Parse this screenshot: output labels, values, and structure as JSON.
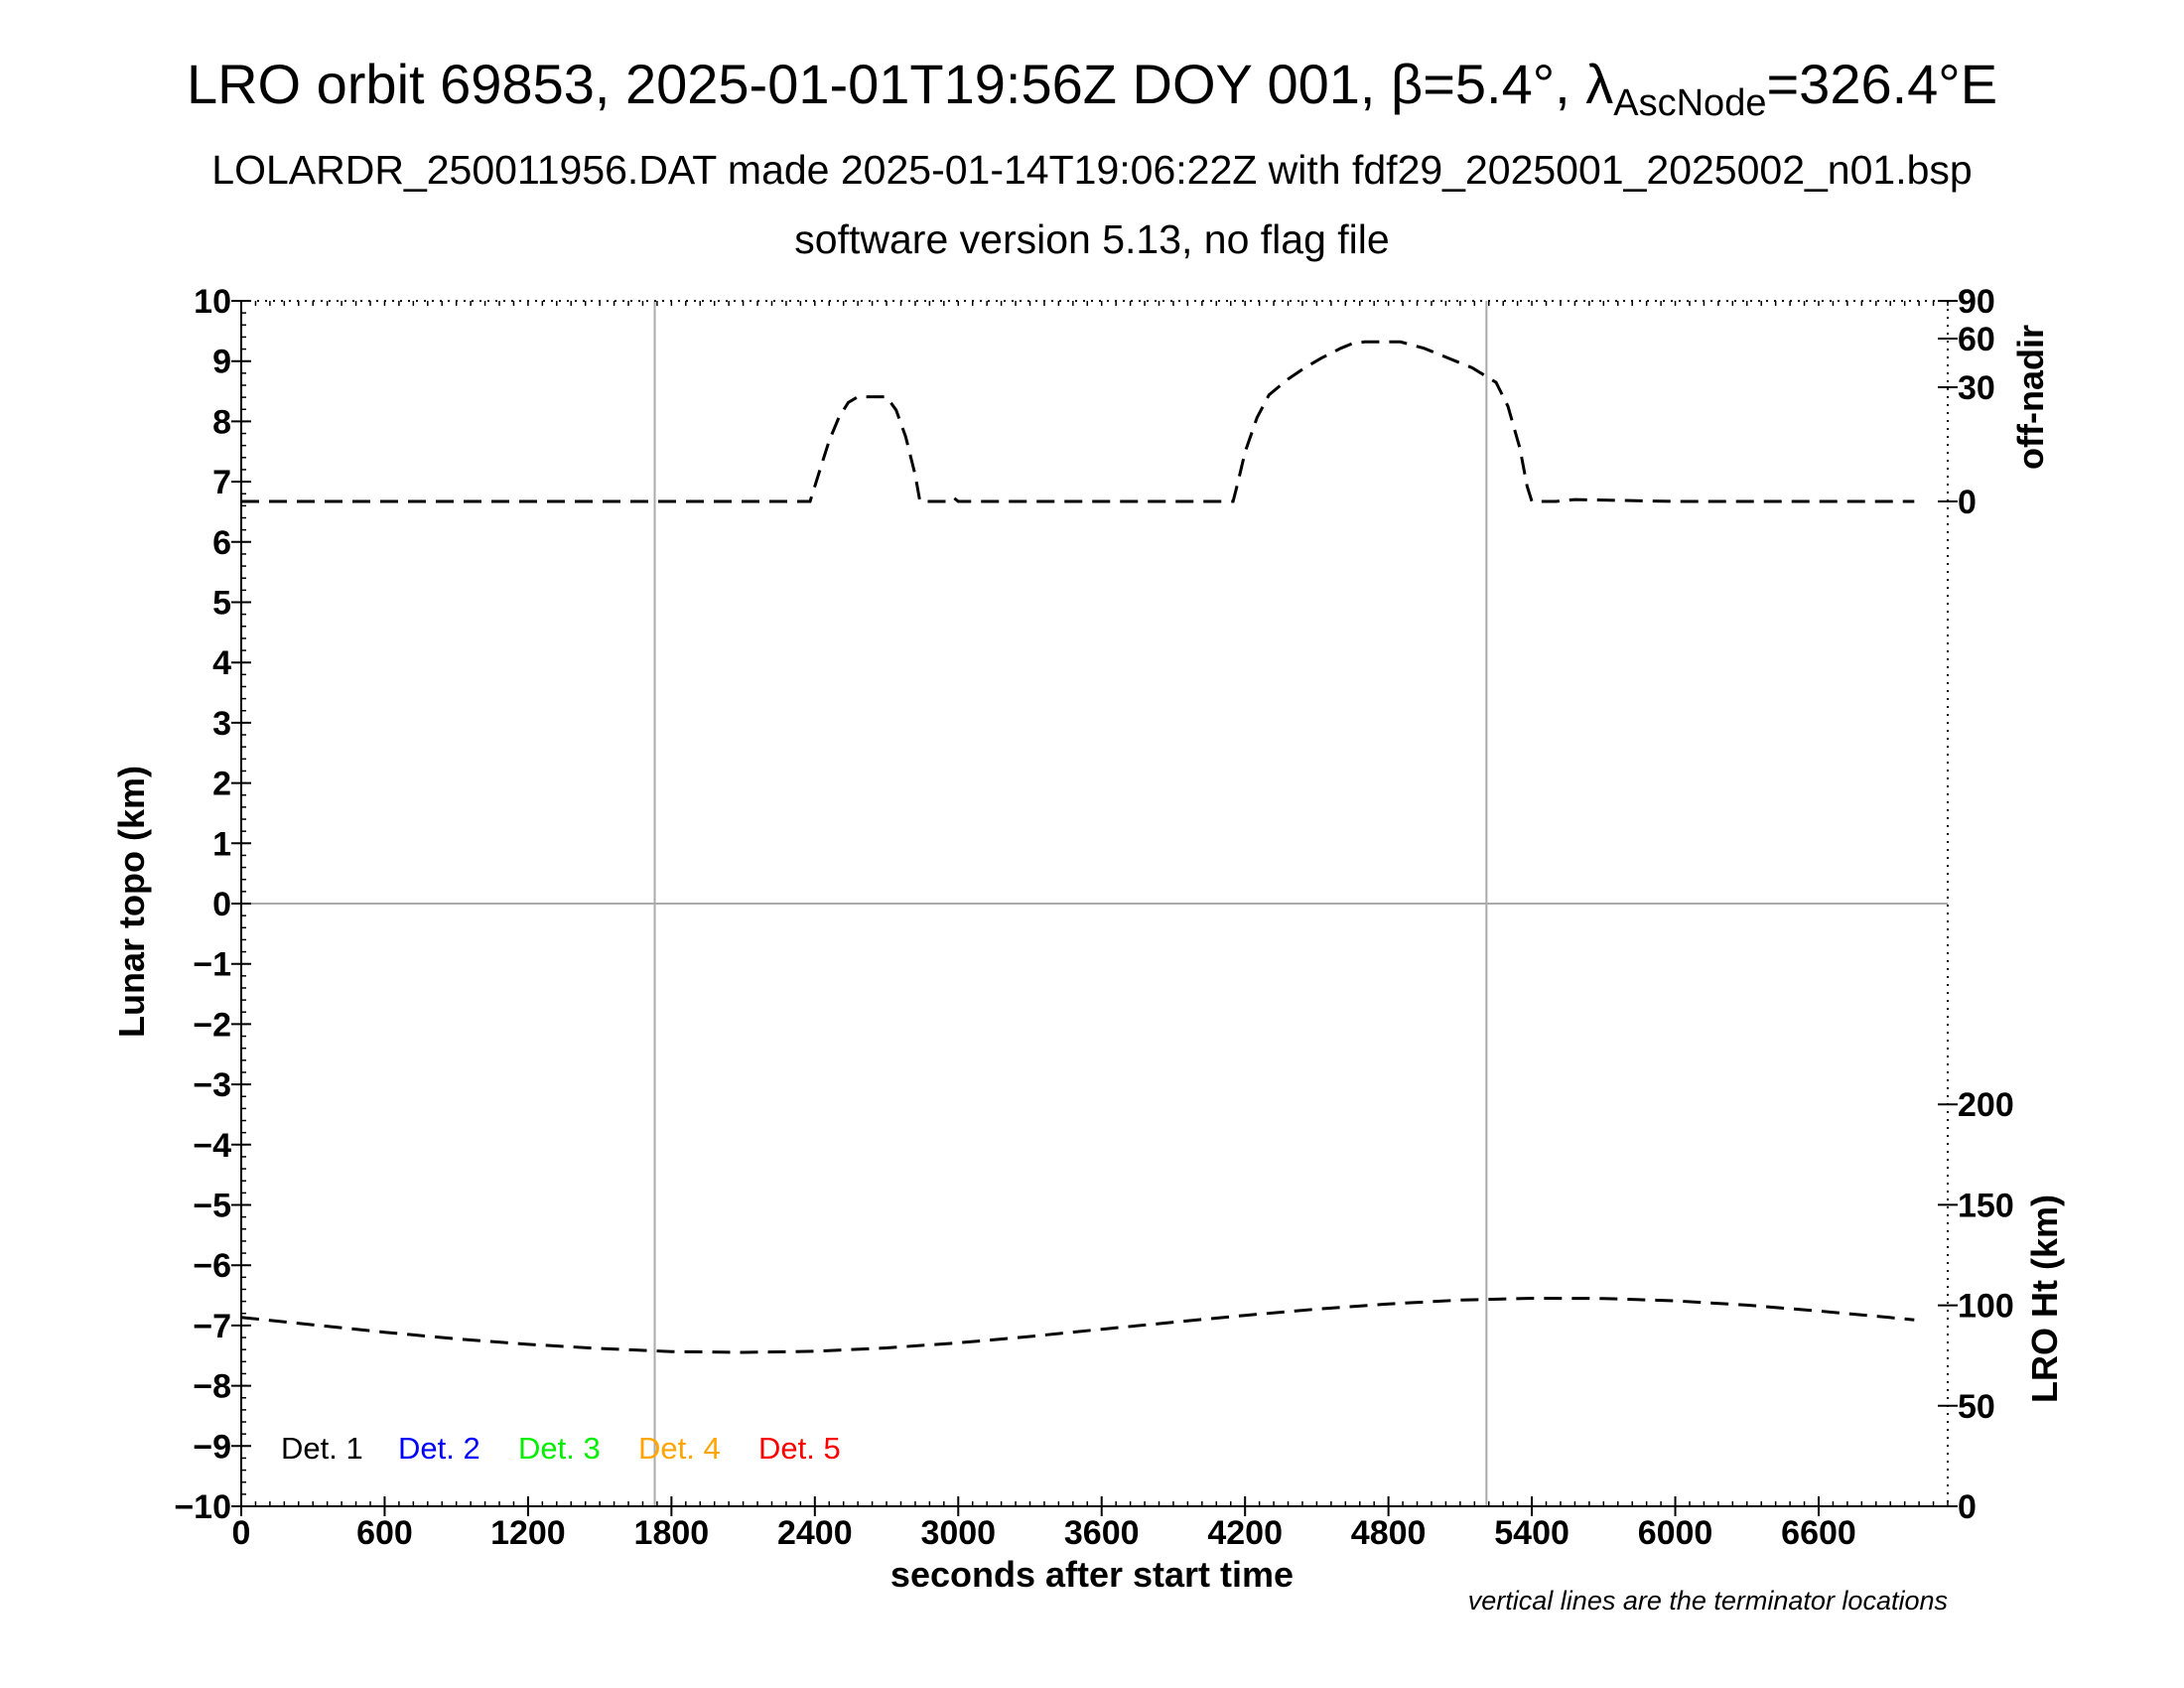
{
  "title": {
    "line1_prefix": "LRO orbit 69853, 2025-01-01T19:56Z DOY 001, β=5.4°, λ",
    "line1_sub": "AscNode",
    "line1_suffix": "=326.4°E",
    "line2": "LOLARDR_250011956.DAT made 2025-01-14T19:06:22Z with fdf29_2025001_2025002_n01.bsp",
    "line3": "software version 5.13, no flag file"
  },
  "chart_data": {
    "type": "line",
    "xlabel": "seconds after start time",
    "ylabel": "Lunar topo (km)",
    "y2label_top": "off-nadir",
    "y2label_bottom": "LRO Ht (km)",
    "note": "vertical lines are the terminator locations",
    "xlim": [
      0,
      7140
    ],
    "ylim": [
      -10,
      10
    ],
    "x_ticks": [
      0,
      600,
      1200,
      1800,
      2400,
      3000,
      3600,
      4200,
      4800,
      5400,
      6000,
      6600
    ],
    "y_ticks": [
      -10,
      -9,
      -8,
      -7,
      -6,
      -5,
      -4,
      -3,
      -2,
      -1,
      0,
      1,
      2,
      3,
      4,
      5,
      6,
      7,
      8,
      9,
      10
    ],
    "y_tick_labels": [
      "−10",
      "−9",
      "−8",
      "−7",
      "−6",
      "−5",
      "−4",
      "−3",
      "−2",
      "−1",
      "0",
      "1",
      "2",
      "3",
      "4",
      "5",
      "6",
      "7",
      "8",
      "9",
      "10"
    ],
    "offnadir_axis": {
      "ticks": [
        0,
        30,
        60,
        90
      ],
      "tick_labels": [
        "0",
        "30",
        "60",
        "90"
      ]
    },
    "height_axis": {
      "range": [
        0,
        250
      ],
      "ticks": [
        0,
        50,
        100,
        150,
        200
      ],
      "tick_labels": [
        "0",
        "50",
        "100",
        "150",
        "200"
      ]
    },
    "terminators_x": [
      1730,
      5210
    ],
    "zero_line_y": 0,
    "legend": [
      {
        "label": "Det. 1",
        "color": "#000000"
      },
      {
        "label": "Det. 2",
        "color": "#0000ff"
      },
      {
        "label": "Det. 3",
        "color": "#00ee00"
      },
      {
        "label": "Det. 4",
        "color": "#ffa500"
      },
      {
        "label": "Det. 5",
        "color": "#ff0000"
      }
    ],
    "series": [
      {
        "axis": "off-nadir",
        "x": [
          0,
          600,
          1200,
          1800,
          2380,
          2400,
          2430,
          2460,
          2500,
          2540,
          2580,
          2620,
          2660,
          2700,
          2740,
          2780,
          2820,
          2840,
          2900,
          2950,
          2980,
          3000,
          3600,
          4150,
          4170,
          4200,
          4250,
          4300,
          4380,
          4450,
          4520,
          4600,
          4650,
          4700,
          4750,
          4800,
          4850,
          4950,
          5050,
          5150,
          5250,
          5300,
          5350,
          5380,
          5400,
          5500,
          5580,
          6000,
          6600,
          7000
        ],
        "y": [
          0,
          0,
          0,
          0,
          0,
          4,
          10,
          16,
          22,
          26,
          27.5,
          27.5,
          27.5,
          27.5,
          24,
          17,
          7,
          0,
          0,
          0,
          1,
          0,
          0,
          0,
          5,
          13,
          22,
          28,
          35,
          42,
          48,
          54,
          57,
          58,
          58,
          58,
          58,
          54,
          48,
          42,
          33,
          25,
          14,
          4,
          0,
          0,
          0.5,
          0,
          0,
          0
        ]
      },
      {
        "axis": "LRO Ht (km)",
        "x": [
          0,
          300,
          600,
          900,
          1200,
          1500,
          1800,
          2100,
          2400,
          2700,
          3000,
          3300,
          3600,
          3900,
          4200,
          4500,
          4800,
          5100,
          5400,
          5700,
          6000,
          6300,
          6600,
          6900,
          7000
        ],
        "y": [
          94,
          90.3,
          86.6,
          83.3,
          80.6,
          78.5,
          77.0,
          76.6,
          77.1,
          78.8,
          81.3,
          84.5,
          88.1,
          91.6,
          95.0,
          98.1,
          100.7,
          102.6,
          103.5,
          103.4,
          102.2,
          100.1,
          97.2,
          93.9,
          92.8
        ]
      }
    ]
  }
}
